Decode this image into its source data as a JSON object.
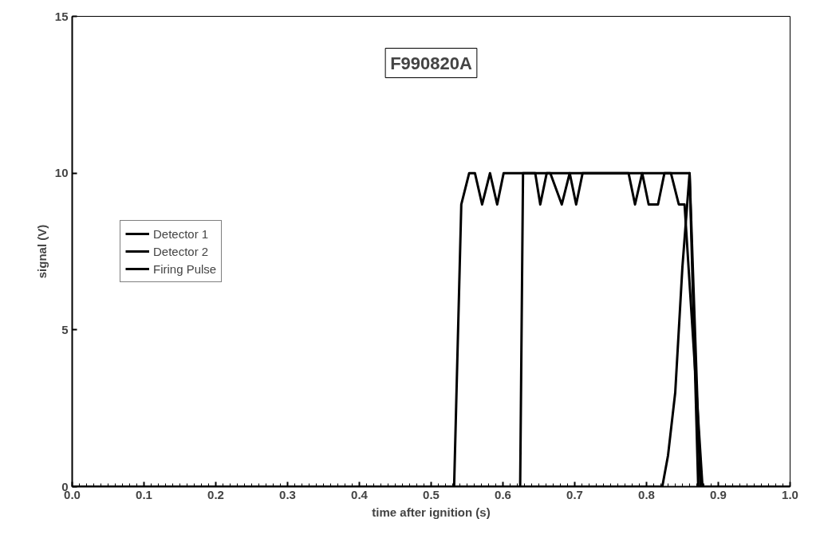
{
  "chart_data": {
    "type": "line",
    "title": "F990820A",
    "xlabel": "time after ignition (s)",
    "ylabel": "signal (V)",
    "xlim": [
      0,
      1
    ],
    "xticks": [
      {
        "value": 0,
        "label": "0.0"
      },
      0.1,
      0.2,
      0.3,
      0.4,
      0.5,
      0.6,
      0.7,
      0.8,
      0.9,
      {
        "value": 1,
        "label": "1.0"
      }
    ],
    "ylim": [
      0,
      15
    ],
    "yticks": [
      0,
      5,
      10,
      15
    ],
    "grid": false,
    "legend": "left",
    "line_style": "solid",
    "marker": "none",
    "series": [
      {
        "name": "Detector 1",
        "color": "#000000",
        "x": [
          0,
          0.532,
          0.542,
          0.553,
          0.561,
          0.571,
          0.582,
          0.592,
          0.601,
          0.645,
          0.652,
          0.661,
          0.666,
          0.682,
          0.693,
          0.702,
          0.711,
          0.775,
          0.784,
          0.794,
          0.803,
          0.816,
          0.825,
          0.834,
          0.845,
          0.853,
          0.878,
          1.0
        ],
        "values": [
          0,
          0,
          9,
          10,
          10,
          9,
          10,
          9,
          10,
          10,
          9,
          10,
          10,
          9,
          10,
          9,
          10,
          10,
          9,
          10,
          9,
          9,
          10,
          10,
          9,
          9,
          0,
          0
        ]
      },
      {
        "name": "Detector 2",
        "color": "#000000",
        "x": [
          0,
          0.624,
          0.628,
          0.86,
          0.872,
          1.0
        ],
        "values": [
          0,
          0,
          10,
          10,
          0,
          0
        ]
      },
      {
        "name": "Firing Pulse",
        "color": "#000000",
        "x": [
          0,
          0.822,
          0.83,
          0.84,
          0.85,
          0.86,
          0.875,
          1.0
        ],
        "values": [
          0,
          0,
          1,
          3,
          7,
          10,
          0,
          0
        ]
      }
    ]
  }
}
